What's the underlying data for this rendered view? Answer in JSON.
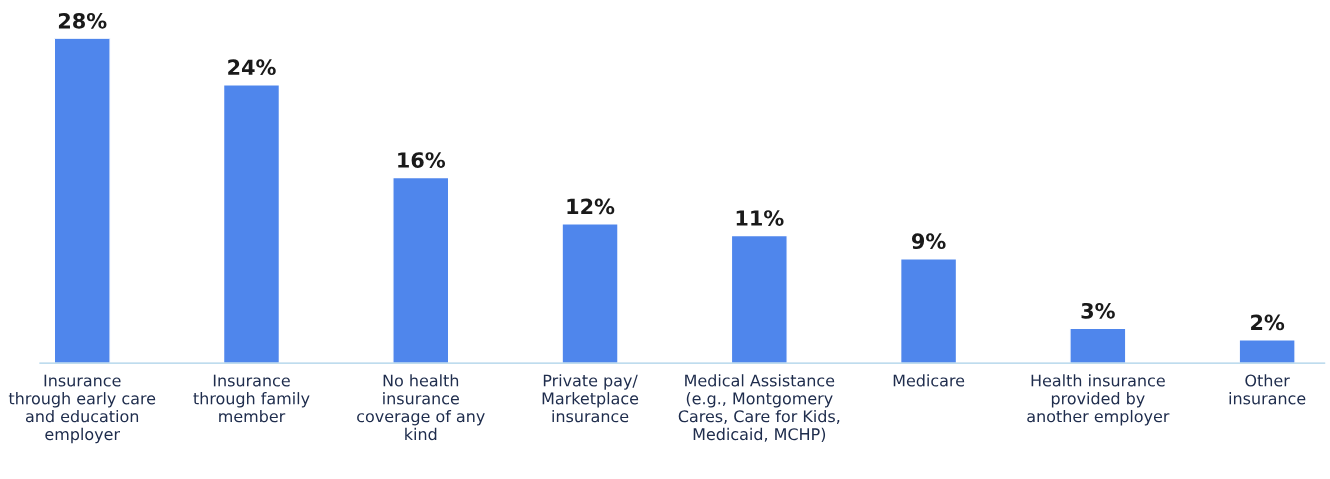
{
  "chart_data": {
    "type": "bar",
    "categories": [
      "Insurance\nthrough early care\nand education\nemployer",
      "Insurance\nthrough family\nmember",
      "No health\ninsurance\ncoverage of any\nkind",
      "Private pay/\nMarketplace\ninsurance",
      "Medical Assistance\n(e.g., Montgomery\nCares, Care for Kids,\nMedicaid, MCHP)",
      "Medicare",
      "Health insurance\nprovided by\nanother employer",
      "Other\ninsurance"
    ],
    "values": [
      28,
      24,
      16,
      12,
      11,
      9,
      3,
      2
    ],
    "value_labels": [
      "28%",
      "24%",
      "16%",
      "12%",
      "11%",
      "9%",
      "3%",
      "2%"
    ],
    "color": "#4f86ec",
    "grid": false
  }
}
